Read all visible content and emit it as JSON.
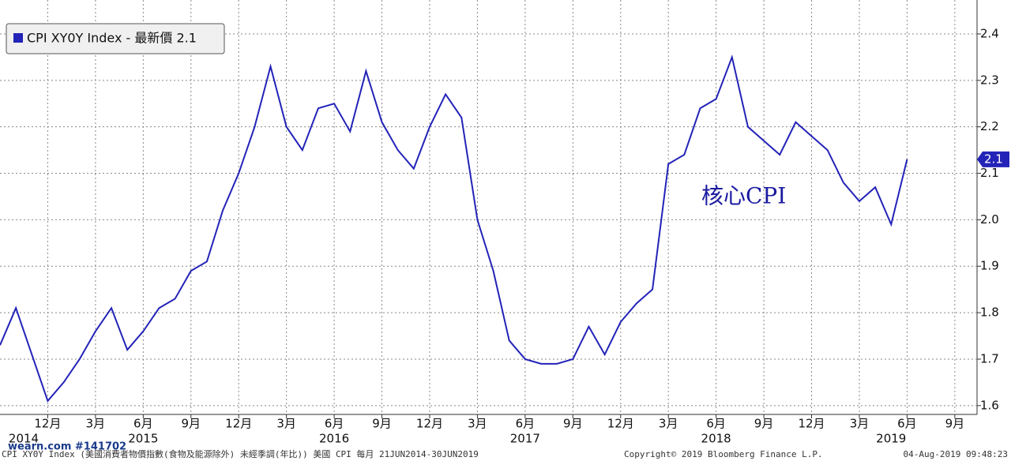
{
  "chart_data": {
    "type": "line",
    "legend_text": "CPI XY0Y Index - 最新價 2.1",
    "annotation": "核心CPI",
    "x": [
      "2014-09",
      "2014-10",
      "2014-11",
      "2014-12",
      "2015-01",
      "2015-02",
      "2015-03",
      "2015-04",
      "2015-05",
      "2015-06",
      "2015-07",
      "2015-08",
      "2015-09",
      "2015-10",
      "2015-11",
      "2015-12",
      "2016-01",
      "2016-02",
      "2016-03",
      "2016-04",
      "2016-05",
      "2016-06",
      "2016-07",
      "2016-08",
      "2016-09",
      "2016-10",
      "2016-11",
      "2016-12",
      "2017-01",
      "2017-02",
      "2017-03",
      "2017-04",
      "2017-05",
      "2017-06",
      "2017-07",
      "2017-08",
      "2017-09",
      "2017-10",
      "2017-11",
      "2017-12",
      "2018-01",
      "2018-02",
      "2018-03",
      "2018-04",
      "2018-05",
      "2018-06",
      "2018-07",
      "2018-08",
      "2018-09",
      "2018-10",
      "2018-11",
      "2018-12",
      "2019-01",
      "2019-02",
      "2019-03",
      "2019-04",
      "2019-05",
      "2019-06"
    ],
    "series": [
      {
        "name": "CPI XY0Y Index",
        "color": "#2323b8",
        "values": [
          1.73,
          1.81,
          1.71,
          1.61,
          1.65,
          1.7,
          1.76,
          1.81,
          1.72,
          1.76,
          1.81,
          1.83,
          1.89,
          1.91,
          2.02,
          2.1,
          2.2,
          2.33,
          2.2,
          2.15,
          2.24,
          2.25,
          2.19,
          2.32,
          2.21,
          2.15,
          2.11,
          2.2,
          2.27,
          2.22,
          2.0,
          1.89,
          1.74,
          1.7,
          1.69,
          1.69,
          1.7,
          1.77,
          1.71,
          1.78,
          1.82,
          1.85,
          2.12,
          2.14,
          2.24,
          2.26,
          2.35,
          2.2,
          2.17,
          2.14,
          2.21,
          2.18,
          2.15,
          2.08,
          2.04,
          2.07,
          1.99,
          2.13
        ],
        "value_labels": [
          null,
          null,
          null,
          null,
          null,
          null,
          null,
          null,
          null,
          null,
          null,
          null,
          null,
          null,
          null,
          null,
          null,
          null,
          null,
          null,
          null,
          null,
          null,
          null,
          null,
          null,
          null,
          null,
          null,
          null,
          null,
          null,
          null,
          null,
          null,
          null,
          null,
          null,
          null,
          null,
          null,
          null,
          null,
          null,
          null,
          null,
          null,
          null,
          null,
          null,
          null,
          null,
          null,
          null,
          null,
          null,
          null,
          "2.1"
        ]
      }
    ],
    "xlim": [
      "2014-09",
      "2019-10"
    ],
    "xticks": [
      {
        "value": "2014-12",
        "label": "12月"
      },
      {
        "value": "2015-03",
        "label": "3月"
      },
      {
        "value": "2015-06",
        "label": "6月"
      },
      {
        "value": "2015-09",
        "label": "9月"
      },
      {
        "value": "2015-12",
        "label": "12月"
      },
      {
        "value": "2016-03",
        "label": "3月"
      },
      {
        "value": "2016-06",
        "label": "6月"
      },
      {
        "value": "2016-09",
        "label": "9月"
      },
      {
        "value": "2016-12",
        "label": "12月"
      },
      {
        "value": "2017-03",
        "label": "3月"
      },
      {
        "value": "2017-06",
        "label": "6月"
      },
      {
        "value": "2017-09",
        "label": "9月"
      },
      {
        "value": "2017-12",
        "label": "12月"
      },
      {
        "value": "2018-03",
        "label": "3月"
      },
      {
        "value": "2018-06",
        "label": "6月"
      },
      {
        "value": "2018-09",
        "label": "9月"
      },
      {
        "value": "2018-12",
        "label": "12月"
      },
      {
        "value": "2019-03",
        "label": "3月"
      },
      {
        "value": "2019-06",
        "label": "6月"
      },
      {
        "value": "2019-09",
        "label": "9月"
      }
    ],
    "year_labels": [
      {
        "value": "2014-10",
        "label": "2014"
      },
      {
        "value": "2015-06",
        "label": "2015"
      },
      {
        "value": "2016-06",
        "label": "2016"
      },
      {
        "value": "2017-06",
        "label": "2017"
      },
      {
        "value": "2018-06",
        "label": "2018"
      },
      {
        "value": "2019-05",
        "label": "2019"
      }
    ],
    "ylim": [
      1.581,
      2.473
    ],
    "yticks": [
      1.6,
      1.7,
      1.8,
      1.9,
      {
        "value": 2,
        "label": "2.0"
      },
      2.1,
      2.2,
      2.3,
      2.4
    ],
    "grid": true,
    "footer_left": "CPI XY0Y Index (美國消費者物價指數(食物及能源除外) 未經季調(年比)) 美國 CPI  每月 21JUN2014-30JUN2019",
    "footer_center": "Copyright© 2019 Bloomberg Finance L.P.",
    "footer_right": "04-Aug-2019 09:48:23",
    "watermark": "wearn.com #141702"
  }
}
